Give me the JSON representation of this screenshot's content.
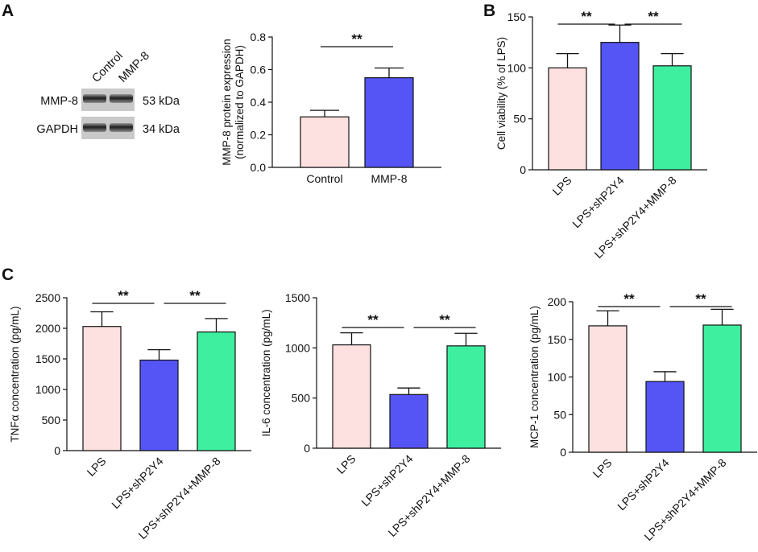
{
  "panel_labels": {
    "a": "A",
    "b": "B",
    "c": "C"
  },
  "western_blot": {
    "lanes": [
      "Control",
      "MMP-8"
    ],
    "bands": [
      {
        "name": "MMP-8",
        "kda": "53 kDa"
      },
      {
        "name": "GAPDH",
        "kda": "34 kDa"
      }
    ]
  },
  "chart_data": [
    {
      "id": "A",
      "type": "bar",
      "ylabel_lines": [
        "MMP-8 protein expression",
        "(normalized to GAPDH)"
      ],
      "categories": [
        "Control",
        "MMP-8"
      ],
      "values": [
        0.31,
        0.55
      ],
      "errors": [
        0.04,
        0.06
      ],
      "colors": [
        "#fde0e0",
        "#5555f5"
      ],
      "ylim": [
        0,
        0.8
      ],
      "yticks": [
        0.0,
        0.2,
        0.4,
        0.6,
        0.8
      ],
      "ytick_labels": [
        "0.0",
        "0.2",
        "0.4",
        "0.6",
        "0.8"
      ],
      "significance": [
        {
          "from": 0,
          "to": 1,
          "label": "**"
        }
      ]
    },
    {
      "id": "B",
      "type": "bar",
      "ylabel_lines": [
        "Cell viability (% of LPS)"
      ],
      "categories": [
        "LPS",
        "LPS+shP2Y4",
        "LPS+shP2Y4+MMP-8"
      ],
      "values": [
        100,
        125,
        102
      ],
      "errors": [
        14,
        17,
        12
      ],
      "colors": [
        "#fde0e0",
        "#5555f5",
        "#3def9f"
      ],
      "ylim": [
        0,
        150
      ],
      "yticks": [
        0,
        50,
        100,
        150
      ],
      "ytick_labels": [
        "0",
        "50",
        "100",
        "150"
      ],
      "significance": [
        {
          "from": 0,
          "to": 1,
          "label": "**"
        },
        {
          "from": 1,
          "to": 2,
          "label": "**"
        }
      ]
    },
    {
      "id": "C1",
      "type": "bar",
      "ylabel_lines": [
        "TNFα concentration (pg/mL)"
      ],
      "categories": [
        "LPS",
        "LPS+shP2Y4",
        "LPS+shP2Y4+MMP-8"
      ],
      "values": [
        2030,
        1480,
        1940
      ],
      "errors": [
        240,
        170,
        220
      ],
      "colors": [
        "#fde0e0",
        "#5555f5",
        "#3def9f"
      ],
      "ylim": [
        0,
        2500
      ],
      "yticks": [
        0,
        500,
        1000,
        1500,
        2000,
        2500
      ],
      "ytick_labels": [
        "0",
        "500",
        "1000",
        "1500",
        "2000",
        "2500"
      ],
      "significance": [
        {
          "from": 0,
          "to": 1,
          "label": "**"
        },
        {
          "from": 1,
          "to": 2,
          "label": "**"
        }
      ]
    },
    {
      "id": "C2",
      "type": "bar",
      "ylabel_lines": [
        "IL-6 concentration (pg/mL)"
      ],
      "categories": [
        "LPS",
        "LPS+shP2Y4",
        "LPS+shP2Y4+MMP-8"
      ],
      "values": [
        1030,
        535,
        1020
      ],
      "errors": [
        120,
        65,
        125
      ],
      "colors": [
        "#fde0e0",
        "#5555f5",
        "#3def9f"
      ],
      "ylim": [
        0,
        1500
      ],
      "yticks": [
        0,
        500,
        1000,
        1500
      ],
      "ytick_labels": [
        "0",
        "500",
        "1000",
        "1500"
      ],
      "significance": [
        {
          "from": 0,
          "to": 1,
          "label": "**"
        },
        {
          "from": 1,
          "to": 2,
          "label": "**"
        }
      ]
    },
    {
      "id": "C3",
      "type": "bar",
      "ylabel_lines": [
        "MCP-1 concentration (pg/mL)"
      ],
      "categories": [
        "LPS",
        "LPS+shP2Y4",
        "LPS+shP2Y4+MMP-8"
      ],
      "values": [
        168,
        94,
        169
      ],
      "errors": [
        20,
        13,
        21
      ],
      "colors": [
        "#fde0e0",
        "#5555f5",
        "#3def9f"
      ],
      "ylim": [
        0,
        200
      ],
      "yticks": [
        0,
        50,
        100,
        150,
        200
      ],
      "ytick_labels": [
        "0",
        "50",
        "100",
        "150",
        "200"
      ],
      "significance": [
        {
          "from": 0,
          "to": 1,
          "label": "**"
        },
        {
          "from": 1,
          "to": 2,
          "label": "**"
        }
      ]
    }
  ]
}
